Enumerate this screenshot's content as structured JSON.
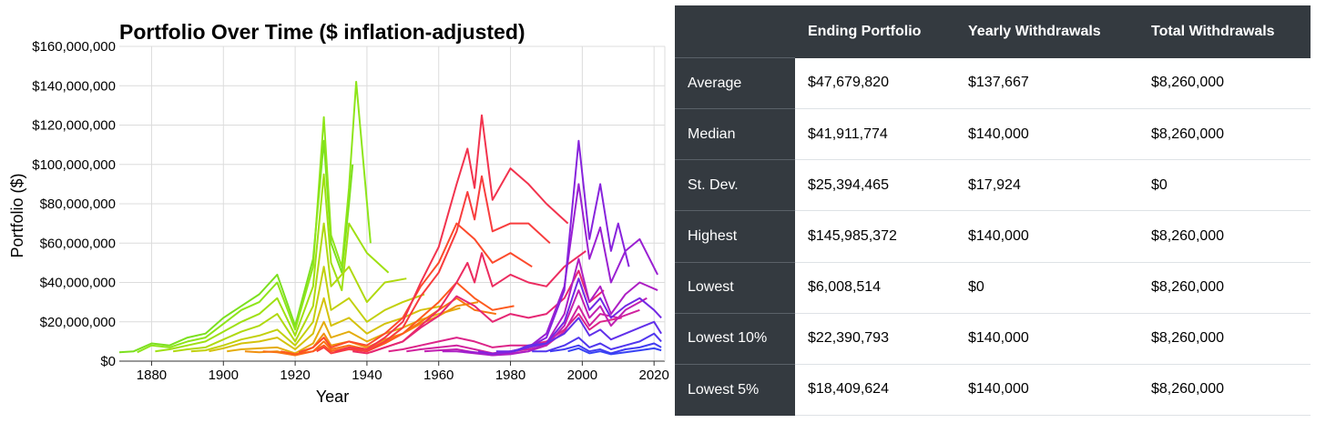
{
  "chart_data": {
    "type": "line",
    "title": "Portfolio Over Time ($ inflation-adjusted)",
    "xlabel": "Year",
    "ylabel": "Portfolio ($)",
    "xlim": [
      1871,
      2023
    ],
    "ylim": [
      0,
      160000000
    ],
    "xticks": [
      1880,
      1900,
      1920,
      1940,
      1960,
      1980,
      2000,
      2020
    ],
    "yticks": [
      0,
      20000000,
      40000000,
      60000000,
      80000000,
      100000000,
      120000000,
      140000000,
      160000000
    ],
    "ytick_labels": [
      "$0",
      "$20,000,000",
      "$40,000,000",
      "$60,000,000",
      "$80,000,000",
      "$100,000,000",
      "$120,000,000",
      "$140,000,000",
      "$160,000,000"
    ],
    "grid": true,
    "color_scheme": "rainbow by start year: green (1870s) → yellow → orange/red (1920s) → magenta (1950s) → purple → blue (1990s)",
    "series": [
      {
        "start": 1871,
        "color": "#7be01e",
        "x": [
          1871,
          1875,
          1880,
          1885,
          1890,
          1895,
          1900,
          1905,
          1910,
          1915,
          1920,
          1925,
          1928,
          1930,
          1933,
          1935,
          1936
        ],
        "y": [
          4.5,
          5,
          9,
          8,
          12,
          14,
          22,
          28,
          34,
          44,
          18,
          52,
          112,
          60,
          45,
          80,
          100
        ]
      },
      {
        "start": 1876,
        "color": "#8ee51a",
        "x": [
          1876,
          1880,
          1885,
          1890,
          1895,
          1900,
          1905,
          1910,
          1915,
          1920,
          1925,
          1928,
          1930,
          1933,
          1935,
          1937,
          1941
        ],
        "y": [
          4.5,
          8,
          7,
          10,
          12,
          19,
          26,
          30,
          40,
          16,
          48,
          124,
          64,
          48,
          88,
          142,
          60
        ]
      },
      {
        "start": 1881,
        "color": "#9fe012",
        "x": [
          1881,
          1885,
          1890,
          1895,
          1900,
          1905,
          1910,
          1915,
          1920,
          1925,
          1928,
          1930,
          1933,
          1935,
          1940,
          1946
        ],
        "y": [
          5,
          6,
          8,
          10,
          15,
          20,
          24,
          32,
          13,
          38,
          95,
          50,
          36,
          70,
          55,
          45
        ]
      },
      {
        "start": 1886,
        "color": "#b0d90f",
        "x": [
          1886,
          1890,
          1895,
          1900,
          1905,
          1910,
          1915,
          1920,
          1925,
          1928,
          1930,
          1935,
          1940,
          1945,
          1951
        ],
        "y": [
          5,
          6,
          7,
          11,
          15,
          18,
          24,
          10,
          28,
          70,
          38,
          48,
          30,
          40,
          42
        ]
      },
      {
        "start": 1891,
        "color": "#c2d00d",
        "x": [
          1891,
          1895,
          1900,
          1905,
          1910,
          1915,
          1920,
          1925,
          1928,
          1930,
          1935,
          1940,
          1945,
          1950,
          1956
        ],
        "y": [
          5,
          5.5,
          8,
          11,
          13,
          16,
          8,
          20,
          48,
          26,
          32,
          20,
          26,
          30,
          34
        ]
      },
      {
        "start": 1896,
        "color": "#d4c20c",
        "x": [
          1896,
          1900,
          1905,
          1910,
          1915,
          1920,
          1925,
          1928,
          1930,
          1935,
          1940,
          1945,
          1950,
          1955,
          1961
        ],
        "y": [
          5,
          6.5,
          9,
          10,
          12,
          6,
          14,
          32,
          18,
          22,
          14,
          19,
          22,
          26,
          28
        ]
      },
      {
        "start": 1901,
        "color": "#e4ac0d",
        "x": [
          1901,
          1905,
          1910,
          1915,
          1920,
          1925,
          1928,
          1930,
          1935,
          1940,
          1945,
          1950,
          1955,
          1960,
          1966
        ],
        "y": [
          5,
          6,
          6.5,
          7,
          4,
          9,
          20,
          12,
          15,
          10,
          14,
          17,
          21,
          24,
          27
        ]
      },
      {
        "start": 1906,
        "color": "#f0900f",
        "x": [
          1906,
          1910,
          1915,
          1920,
          1925,
          1928,
          1930,
          1935,
          1940,
          1945,
          1950,
          1955,
          1960,
          1965,
          1971
        ],
        "y": [
          5,
          4.5,
          5,
          3,
          7,
          14,
          8,
          10,
          7,
          11,
          14,
          19,
          23,
          28,
          30
        ]
      },
      {
        "start": 1911,
        "color": "#f87214",
        "x": [
          1911,
          1915,
          1920,
          1925,
          1928,
          1930,
          1935,
          1940,
          1945,
          1950,
          1955,
          1960,
          1965,
          1970,
          1976
        ],
        "y": [
          5,
          4.5,
          3,
          5,
          10,
          6,
          8,
          6,
          10,
          14,
          20,
          26,
          32,
          26,
          24
        ]
      },
      {
        "start": 1916,
        "color": "#fd5a1e",
        "x": [
          1916,
          1920,
          1925,
          1928,
          1930,
          1935,
          1940,
          1945,
          1950,
          1955,
          1960,
          1965,
          1970,
          1975,
          1981
        ],
        "y": [
          5,
          3.5,
          5,
          8,
          5,
          7,
          5,
          9,
          14,
          22,
          30,
          40,
          32,
          26,
          28
        ]
      },
      {
        "start": 1921,
        "color": "#fc4a2c",
        "x": [
          1921,
          1925,
          1928,
          1930,
          1935,
          1940,
          1945,
          1950,
          1955,
          1960,
          1965,
          1970,
          1975,
          1980,
          1986
        ],
        "y": [
          4.5,
          7,
          12,
          7,
          10,
          8,
          14,
          22,
          38,
          50,
          70,
          62,
          50,
          55,
          48
        ]
      },
      {
        "start": 1926,
        "color": "#f83d3d",
        "x": [
          1926,
          1928,
          1930,
          1935,
          1940,
          1945,
          1950,
          1955,
          1960,
          1965,
          1968,
          1970,
          1972,
          1975,
          1980,
          1985,
          1991
        ],
        "y": [
          5,
          7,
          4,
          6,
          5,
          10,
          17,
          33,
          45,
          66,
          86,
          72,
          94,
          66,
          70,
          70,
          60
        ]
      },
      {
        "start": 1931,
        "color": "#f2334e",
        "x": [
          1931,
          1935,
          1940,
          1945,
          1950,
          1955,
          1960,
          1965,
          1968,
          1970,
          1972,
          1975,
          1980,
          1985,
          1990,
          1996
        ],
        "y": [
          4.5,
          7,
          6,
          12,
          20,
          40,
          58,
          90,
          108,
          88,
          125,
          82,
          98,
          90,
          80,
          70
        ]
      },
      {
        "start": 1936,
        "color": "#ec2c60",
        "x": [
          1936,
          1940,
          1945,
          1950,
          1955,
          1960,
          1965,
          1968,
          1970,
          1972,
          1975,
          1980,
          1985,
          1990,
          1995,
          2001
        ],
        "y": [
          5,
          4,
          7,
          10,
          18,
          26,
          40,
          50,
          40,
          55,
          38,
          44,
          40,
          38,
          48,
          56
        ]
      },
      {
        "start": 1941,
        "color": "#e52774",
        "x": [
          1941,
          1945,
          1950,
          1955,
          1960,
          1965,
          1970,
          1975,
          1980,
          1985,
          1990,
          1995,
          1999,
          2002,
          2006
        ],
        "y": [
          4.5,
          7,
          10,
          17,
          23,
          33,
          28,
          20,
          24,
          22,
          24,
          32,
          46,
          30,
          36
        ]
      },
      {
        "start": 1946,
        "color": "#dc2489",
        "x": [
          1946,
          1950,
          1955,
          1960,
          1965,
          1970,
          1975,
          1980,
          1985,
          1990,
          1995,
          1999,
          2002,
          2005,
          2011
        ],
        "y": [
          5,
          6,
          8,
          10,
          12,
          10,
          7,
          8,
          8,
          10,
          16,
          24,
          16,
          20,
          22
        ]
      },
      {
        "start": 1951,
        "color": "#d0229e",
        "x": [
          1951,
          1955,
          1960,
          1965,
          1970,
          1975,
          1980,
          1985,
          1990,
          1995,
          1999,
          2002,
          2005,
          2010,
          2016
        ],
        "y": [
          5,
          6,
          7,
          8,
          6,
          4,
          5,
          6,
          8,
          15,
          28,
          18,
          24,
          22,
          26
        ]
      },
      {
        "start": 1956,
        "color": "#c120b2",
        "x": [
          1956,
          1960,
          1965,
          1970,
          1975,
          1980,
          1985,
          1990,
          1995,
          1999,
          2002,
          2005,
          2008,
          2012,
          2018
        ],
        "y": [
          5,
          5.5,
          6,
          4.5,
          3,
          4,
          5,
          8,
          18,
          36,
          22,
          28,
          18,
          26,
          32
        ]
      },
      {
        "start": 1961,
        "color": "#ad1fc4",
        "x": [
          1961,
          1965,
          1970,
          1975,
          1980,
          1985,
          1990,
          1995,
          1999,
          2002,
          2005,
          2008,
          2012,
          2016,
          2021
        ],
        "y": [
          5,
          5,
          4,
          3,
          3.5,
          5,
          9,
          24,
          52,
          30,
          38,
          24,
          34,
          40,
          36
        ]
      },
      {
        "start": 1966,
        "color": "#9a20d2",
        "x": [
          1966,
          1970,
          1975,
          1980,
          1985,
          1990,
          1995,
          1999,
          2002,
          2005,
          2008,
          2012,
          2016,
          2021
        ],
        "y": [
          5,
          4.5,
          3.5,
          5,
          7,
          14,
          38,
          90,
          52,
          68,
          40,
          56,
          62,
          44
        ]
      },
      {
        "start": 1971,
        "color": "#8723dc",
        "x": [
          1971,
          1975,
          1980,
          1985,
          1990,
          1995,
          1999,
          2002,
          2005,
          2008,
          2010,
          2013
        ],
        "y": [
          5,
          3.8,
          4.5,
          7,
          12,
          36,
          112,
          62,
          90,
          56,
          70,
          48
        ]
      },
      {
        "start": 1976,
        "color": "#7329e4",
        "x": [
          1976,
          1980,
          1985,
          1990,
          1995,
          1999,
          2002,
          2005,
          2008,
          2012,
          2016,
          2020,
          2022
        ],
        "y": [
          5,
          5,
          7,
          9,
          20,
          42,
          26,
          32,
          22,
          28,
          32,
          26,
          22
        ]
      },
      {
        "start": 1981,
        "color": "#6130ea",
        "x": [
          1981,
          1985,
          1990,
          1995,
          1999,
          2002,
          2005,
          2008,
          2012,
          2016,
          2020,
          2022
        ],
        "y": [
          5,
          8,
          9,
          14,
          22,
          13,
          16,
          11,
          14,
          17,
          20,
          14
        ]
      },
      {
        "start": 1986,
        "color": "#5036ee",
        "x": [
          1986,
          1990,
          1995,
          1999,
          2002,
          2005,
          2008,
          2012,
          2016,
          2020,
          2022
        ],
        "y": [
          5,
          5,
          8,
          12,
          7,
          9,
          6,
          8,
          10,
          14,
          10
        ]
      },
      {
        "start": 1991,
        "color": "#423cf2",
        "x": [
          1991,
          1995,
          1999,
          2002,
          2005,
          2008,
          2012,
          2016,
          2020,
          2022
        ],
        "y": [
          5,
          6,
          8,
          5,
          6,
          4,
          6,
          7,
          9,
          7
        ]
      },
      {
        "start": 1996,
        "color": "#3742f4",
        "x": [
          1996,
          1999,
          2002,
          2005,
          2008,
          2012,
          2016,
          2020,
          2022
        ],
        "y": [
          5,
          6.5,
          4,
          5,
          3.5,
          4.5,
          5.5,
          6.5,
          5.5
        ]
      }
    ]
  },
  "table": {
    "headers": [
      "",
      "Ending Portfolio",
      "Yearly Withdrawals",
      "Total Withdrawals"
    ],
    "rows": [
      {
        "label": "Average",
        "ending": "$47,679,820",
        "yearly": "$137,667",
        "total": "$8,260,000"
      },
      {
        "label": "Median",
        "ending": "$41,911,774",
        "yearly": "$140,000",
        "total": "$8,260,000"
      },
      {
        "label": "St. Dev.",
        "ending": "$25,394,465",
        "yearly": "$17,924",
        "total": "$0"
      },
      {
        "label": "Highest",
        "ending": "$145,985,372",
        "yearly": "$140,000",
        "total": "$8,260,000"
      },
      {
        "label": "Lowest",
        "ending": "$6,008,514",
        "yearly": "$0",
        "total": "$8,260,000"
      },
      {
        "label": "Lowest 10%",
        "ending": "$22,390,793",
        "yearly": "$140,000",
        "total": "$8,260,000"
      },
      {
        "label": "Lowest 5%",
        "ending": "$18,409,624",
        "yearly": "$140,000",
        "total": "$8,260,000"
      }
    ]
  },
  "colors": {
    "table_header_bg": "#343a40",
    "table_header_text": "#ffffff",
    "grid": "#dcdcdc"
  }
}
